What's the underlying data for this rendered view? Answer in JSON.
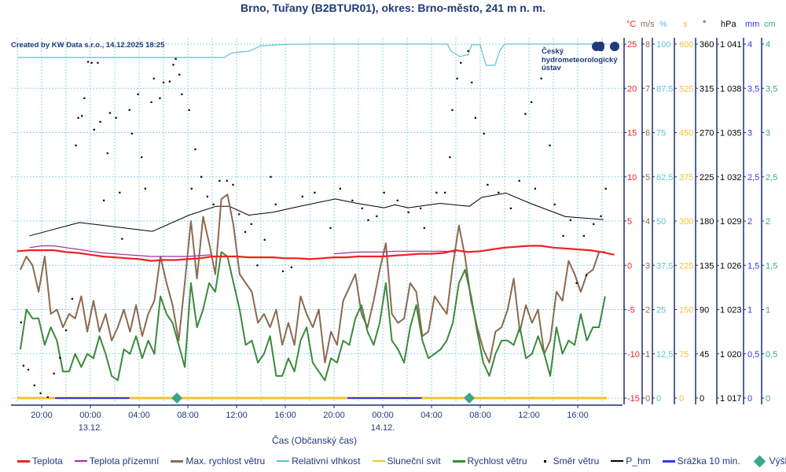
{
  "title": "Brno, Tuřany (B2BTUR01), okres: Brno-město, 241 m n. m.",
  "credit": "Created by KW Data s.r.o., 14.12.2025 18:25",
  "logo_text": [
    "Český",
    "hydrometeorologický",
    "ústav"
  ],
  "chart_data": {
    "type": "line",
    "title": "Brno, Tuřany (B2BTUR01), okres: Brno-město, 241 m n. m.",
    "xlabel": "Čas (Občanský čas)",
    "x_unit": "hours since 12.12. 18:00",
    "xlim": [
      0,
      48.4
    ],
    "x_ticks": [
      {
        "h": 2,
        "label": "20:00"
      },
      {
        "h": 6,
        "label": "00:00",
        "date": "13.12."
      },
      {
        "h": 10,
        "label": "04:00"
      },
      {
        "h": 14,
        "label": "08:00"
      },
      {
        "h": 18,
        "label": "12:00"
      },
      {
        "h": 22,
        "label": "16:00"
      },
      {
        "h": 26,
        "label": "20:00"
      },
      {
        "h": 30,
        "label": "00:00",
        "date": "14.12."
      },
      {
        "h": 34,
        "label": "04:00"
      },
      {
        "h": 38,
        "label": "08:00"
      },
      {
        "h": 42,
        "label": "12:00"
      },
      {
        "h": 46,
        "label": "16:00"
      }
    ],
    "axes": [
      {
        "unit": "°C",
        "color": "#ee2222",
        "ticks": [
          "25",
          "20",
          "15",
          "10",
          "5",
          "0",
          "-5",
          "-10",
          "-15"
        ],
        "range": [
          -15,
          25
        ]
      },
      {
        "unit": "m/s",
        "color": "#8b6a4f",
        "ticks": [
          "8",
          "7",
          "6",
          "5",
          "4",
          "3",
          "2",
          "1",
          "0"
        ],
        "range": [
          0,
          8
        ]
      },
      {
        "unit": "%",
        "color": "#5bc3d3",
        "ticks": [
          "100",
          "87,5",
          "75",
          "62,5",
          "50",
          "37,5",
          "25",
          "12,5",
          "0"
        ],
        "range": [
          0,
          100
        ]
      },
      {
        "unit": "s",
        "color": "#f2c230",
        "ticks": [
          "600",
          "525",
          "450",
          "375",
          "300",
          "225",
          "150",
          "75",
          "0"
        ],
        "range": [
          0,
          600
        ]
      },
      {
        "unit": "°",
        "color": "#000000",
        "ticks": [
          "360",
          "315",
          "270",
          "225",
          "180",
          "135",
          "90",
          "45",
          "0"
        ],
        "range": [
          0,
          360
        ]
      },
      {
        "unit": "hPa",
        "color": "#000000",
        "ticks": [
          "1 041",
          "1 038",
          "1 035",
          "1 032",
          "1 029",
          "1 026",
          "1 023",
          "1 020",
          "1 017"
        ],
        "range": [
          1017,
          1041
        ]
      },
      {
        "unit": "mm",
        "color": "#3333ff",
        "ticks": [
          "4",
          "3,5",
          "3",
          "2,5",
          "2",
          "1,5",
          "1",
          "0,5",
          "0"
        ],
        "range": [
          0,
          4
        ]
      },
      {
        "unit": "cm",
        "color": "#3aa58a",
        "ticks": [
          "4",
          "3,5",
          "3",
          "2,5",
          "2",
          "1,5",
          "1",
          "0,5",
          "0"
        ],
        "range": [
          0,
          4
        ]
      }
    ],
    "series": [
      {
        "name": "Teplota",
        "color": "#ee2222",
        "axis": "°C",
        "step": 1,
        "start": 0,
        "values": [
          1.6,
          1.7,
          1.7,
          1.7,
          1.5,
          1.4,
          1.2,
          1.0,
          0.9,
          0.8,
          0.7,
          0.5,
          0.6,
          0.6,
          0.7,
          0.8,
          1.0,
          1.0,
          1.0,
          0.9,
          0.9,
          0.9,
          0.8,
          0.8,
          0.7,
          0.8,
          0.9,
          0.9,
          1.0,
          1.0,
          1.0,
          1.1,
          1.2,
          1.3,
          1.3,
          1.4,
          1.7,
          1.5,
          1.6,
          1.8,
          2.0,
          2.1,
          2.2,
          2.2,
          2.0,
          1.9,
          1.8,
          1.7,
          1.5,
          1.2
        ]
      },
      {
        "name": "Teplota přízemní",
        "color": "#993399",
        "axis": "°C",
        "segments": [
          {
            "start": 1,
            "step": 1,
            "values": [
              2.0,
              2.2,
              2.2,
              2.0,
              1.8,
              1.6,
              1.4,
              1.3,
              1.2,
              1.1,
              1.0,
              1.0,
              1.0,
              1.0,
              1.1,
              1.2
            ]
          },
          {
            "start": 26,
            "step": 1,
            "values": [
              1.3,
              1.4,
              1.5,
              1.5,
              1.5,
              1.6,
              1.6,
              1.6,
              1.6,
              1.6,
              1.5
            ]
          }
        ]
      },
      {
        "name": "Max. rychlost větru",
        "color": "#8b6a4f",
        "axis": "m/s",
        "step": 0.5,
        "start": 0.25,
        "values": [
          2.9,
          3.2,
          3.0,
          2.4,
          3.2,
          1.9,
          2.0,
          1.6,
          1.9,
          1.8,
          2.3,
          1.5,
          2.2,
          1.5,
          1.9,
          1.3,
          1.6,
          2.0,
          1.5,
          2.1,
          1.4,
          1.9,
          2.2,
          3.2,
          2.6,
          2.1,
          1.3,
          2.6,
          4.0,
          2.7,
          4.1,
          3.5,
          2.8,
          4.5,
          4.6,
          3.9,
          2.8,
          2.6,
          2.4,
          1.7,
          1.9,
          1.6,
          2.0,
          1.2,
          1.7,
          1.2,
          2.3,
          1.9,
          1.6,
          2.0,
          0.8,
          1.5,
          1.2,
          2.2,
          2.5,
          2.8,
          1.9,
          1.6,
          2.2,
          2.9,
          3.5,
          1.9,
          1.7,
          1.8,
          2.6,
          2.4,
          1.4,
          1.5,
          2.3,
          2.1,
          1.9,
          3.0,
          3.9,
          3.2,
          2.2,
          1.6,
          1.1,
          0.8,
          1.5,
          1.6,
          2.0,
          2.7,
          1.5,
          2.1,
          1.7,
          2.0,
          1.0,
          1.3,
          2.4,
          2.2,
          3.1,
          2.8,
          2.4,
          2.8,
          2.9,
          3.3,
          3.3
        ]
      },
      {
        "name": "Relativní vlhkost",
        "color": "#5bc3d3",
        "axis": "%",
        "points": [
          [
            0,
            96.2
          ],
          [
            17.0,
            96.2
          ],
          [
            17.6,
            97.5
          ],
          [
            19.0,
            98.0
          ],
          [
            20.0,
            99.5
          ],
          [
            21.0,
            99.7
          ],
          [
            22.0,
            99.9
          ],
          [
            24.2,
            100
          ],
          [
            35.3,
            100
          ],
          [
            35.6,
            98
          ],
          [
            36.3,
            96.5
          ],
          [
            37.0,
            97
          ],
          [
            37.3,
            99.8
          ],
          [
            38.0,
            99.8
          ],
          [
            38.3,
            96
          ],
          [
            38.5,
            94
          ],
          [
            39.2,
            94
          ],
          [
            39.6,
            98
          ],
          [
            40.0,
            100
          ],
          [
            48.4,
            100
          ]
        ]
      },
      {
        "name": "Sluneční svit",
        "color": "#f2c230",
        "axis": "s",
        "points": [
          [
            0,
            0
          ],
          [
            48.4,
            0
          ]
        ]
      },
      {
        "name": "Rychlost větru",
        "color": "#3a8a3a",
        "axis": "m/s",
        "step": 0.5,
        "start": 0.25,
        "values": [
          1.1,
          2.0,
          1.8,
          1.8,
          1.2,
          1.6,
          1.3,
          0.6,
          0.6,
          1.0,
          0.7,
          1.0,
          0.9,
          1.4,
          1.0,
          0.5,
          0.4,
          1.1,
          1.0,
          1.4,
          0.9,
          1.3,
          1.0,
          2.3,
          1.9,
          1.7,
          1.2,
          0.7,
          2.6,
          1.6,
          2.0,
          2.6,
          2.4,
          3.3,
          3.2,
          2.6,
          2.0,
          1.2,
          1.3,
          0.8,
          1.0,
          1.4,
          0.5,
          0.5,
          0.9,
          0.6,
          1.3,
          1.6,
          0.8,
          0.6,
          0.4,
          0.9,
          0.8,
          1.3,
          1.2,
          1.8,
          2.1,
          1.5,
          1.2,
          1.7,
          2.6,
          1.3,
          1.1,
          0.8,
          1.6,
          2.1,
          1.3,
          0.9,
          1.0,
          1.1,
          1.3,
          1.7,
          2.6,
          2.9,
          2.3,
          1.5,
          0.8,
          0.5,
          1.0,
          1.3,
          1.3,
          1.2,
          1.6,
          0.9,
          1.0,
          1.4,
          1.0,
          0.5,
          1.6,
          1.0,
          1.3,
          1.2,
          1.9,
          1.3,
          1.6,
          1.6,
          2.3
        ]
      },
      {
        "name": "Směr větru",
        "color": "#000000",
        "axis": "°",
        "kind": "dots",
        "points": [
          [
            0.3,
            77
          ],
          [
            0.5,
            33
          ],
          [
            0.9,
            29
          ],
          [
            1.4,
            13
          ],
          [
            1.9,
            5
          ],
          [
            2.5,
            1
          ],
          [
            3.0,
            25
          ],
          [
            3.5,
            41
          ],
          [
            4.0,
            69
          ],
          [
            4.5,
            101
          ],
          [
            4.8,
            257
          ],
          [
            5.0,
            285
          ],
          [
            5.3,
            287
          ],
          [
            5.5,
            305
          ],
          [
            5.8,
            342
          ],
          [
            6.1,
            341
          ],
          [
            6.3,
            273
          ],
          [
            6.6,
            341
          ],
          [
            6.8,
            281
          ],
          [
            7.1,
            201
          ],
          [
            7.4,
            249
          ],
          [
            7.6,
            290
          ],
          [
            8.1,
            285
          ],
          [
            8.4,
            209
          ],
          [
            8.6,
            162
          ],
          [
            9.2,
            293
          ],
          [
            9.4,
            269
          ],
          [
            9.9,
            309
          ],
          [
            10.2,
            245
          ],
          [
            10.5,
            213
          ],
          [
            11.0,
            301
          ],
          [
            11.2,
            325
          ],
          [
            11.7,
            305
          ],
          [
            12.0,
            321
          ],
          [
            12.5,
            322
          ],
          [
            12.8,
            339
          ],
          [
            13.0,
            345
          ],
          [
            13.3,
            329
          ],
          [
            13.5,
            309
          ],
          [
            14.1,
            293
          ],
          [
            14.3,
            213
          ],
          [
            14.6,
            253
          ],
          [
            15.1,
            225
          ],
          [
            15.6,
            205
          ],
          [
            16.1,
            197
          ],
          [
            16.6,
            221
          ],
          [
            17.2,
            221
          ],
          [
            17.7,
            217
          ],
          [
            18.2,
            187
          ],
          [
            18.7,
            169
          ],
          [
            19.2,
            177
          ],
          [
            19.7,
            135
          ],
          [
            20.3,
            161
          ],
          [
            20.8,
            225
          ],
          [
            21.2,
            197
          ],
          [
            21.8,
            129
          ],
          [
            22.5,
            133
          ],
          [
            23.4,
            205
          ],
          [
            24.4,
            209
          ],
          [
            25.7,
            173
          ],
          [
            26.5,
            213
          ],
          [
            27.5,
            201
          ],
          [
            28.3,
            193
          ],
          [
            28.8,
            181
          ],
          [
            29.5,
            185
          ],
          [
            30.1,
            209
          ],
          [
            31.2,
            201
          ],
          [
            32.1,
            189
          ],
          [
            33.1,
            193
          ],
          [
            33.4,
            173
          ],
          [
            34.4,
            209
          ],
          [
            35.1,
            209
          ],
          [
            35.5,
            245
          ],
          [
            35.7,
            293
          ],
          [
            36.1,
            325
          ],
          [
            36.4,
            341
          ],
          [
            37.0,
            353
          ],
          [
            37.3,
            321
          ],
          [
            37.6,
            285
          ],
          [
            38.3,
            269
          ],
          [
            38.6,
            217
          ],
          [
            39.5,
            209
          ],
          [
            40.5,
            193
          ],
          [
            41.2,
            221
          ],
          [
            41.7,
            289
          ],
          [
            42.2,
            301
          ],
          [
            42.5,
            213
          ],
          [
            43.0,
            325
          ],
          [
            43.7,
            257
          ],
          [
            44.1,
            197
          ],
          [
            44.8,
            165
          ],
          [
            45.4,
            181
          ],
          [
            45.9,
            117
          ],
          [
            46.5,
            165
          ],
          [
            46.7,
            125
          ],
          [
            47.3,
            177
          ],
          [
            47.9,
            185
          ],
          [
            48.3,
            213
          ]
        ]
      },
      {
        "name": "P_hm",
        "color": "#000000",
        "axis": "hPa",
        "points": [
          [
            1.0,
            1028.0
          ],
          [
            5.1,
            1028.9
          ],
          [
            11.1,
            1028.3
          ],
          [
            14.1,
            1029.4
          ],
          [
            16.3,
            1030.0
          ],
          [
            17.4,
            1030.0
          ],
          [
            19.0,
            1029.4
          ],
          [
            21.0,
            1029.6
          ],
          [
            23.2,
            1030.0
          ],
          [
            26.1,
            1030.5
          ],
          [
            27.9,
            1030.2
          ],
          [
            30.1,
            1029.9
          ],
          [
            31.0,
            1030.1
          ],
          [
            32.1,
            1029.9
          ],
          [
            34.7,
            1030.2
          ],
          [
            37.1,
            1030.0
          ],
          [
            38.1,
            1030.6
          ],
          [
            40.1,
            1030.9
          ],
          [
            42.1,
            1030.2
          ],
          [
            45.0,
            1029.3
          ],
          [
            48.1,
            1029.1
          ]
        ]
      },
      {
        "name": "Srážka 10 min.",
        "color": "#3333ff",
        "axis": "mm",
        "segments_zero": [
          [
            3.1,
            9.2
          ],
          [
            27.1,
            33.2
          ]
        ],
        "value": 0
      },
      {
        "name": "Výška sněhu",
        "color": "#3aa58a",
        "axis": "cm",
        "kind": "diamonds",
        "points": [
          [
            13.1,
            0
          ],
          [
            37.1,
            0
          ]
        ]
      }
    ]
  }
}
